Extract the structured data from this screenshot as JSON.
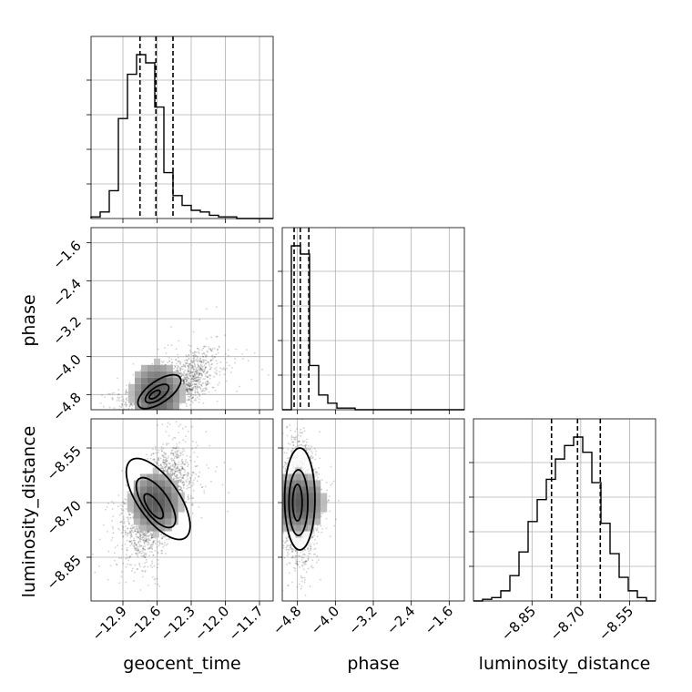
{
  "chart_data": {
    "type": "corner",
    "parameters": [
      "geocent_time",
      "phase",
      "luminosity_distance"
    ],
    "grid": true,
    "panels": [
      {
        "type": "histogram",
        "parameter": "geocent_time",
        "xlim": [
          -13.18,
          -11.58
        ],
        "xticks": [
          "−12.9",
          "−12.6",
          "−12.3",
          "−12.0",
          "−11.7"
        ],
        "xtick_values": [
          -12.9,
          -12.6,
          -12.3,
          -12.0,
          -11.7
        ],
        "bin_edges": [
          -13.18,
          -13.1,
          -13.02,
          -12.94,
          -12.86,
          -12.78,
          -12.7,
          -12.62,
          -12.54,
          -12.46,
          -12.38,
          -12.3,
          -12.22,
          -12.14,
          -12.06,
          -11.98,
          -11.9,
          -11.82,
          -11.74,
          -11.66,
          -11.58
        ],
        "counts": [
          1,
          4,
          17,
          61,
          88,
          100,
          95,
          68,
          28,
          14,
          8,
          5,
          4,
          2,
          1,
          1,
          0,
          0,
          0,
          0
        ],
        "quantiles": [
          -12.75,
          -12.61,
          -12.46
        ]
      },
      {
        "type": "histogram",
        "parameter": "phase",
        "xlim": [
          -5.12,
          -1.28
        ],
        "xticks": [
          "−4.8",
          "−4.0",
          "−3.2",
          "−2.4",
          "−1.6"
        ],
        "xtick_values": [
          -4.8,
          -4.0,
          -3.2,
          -2.4,
          -1.6
        ],
        "bin_edges": [
          -5.12,
          -4.928,
          -4.736,
          -4.544,
          -4.352,
          -4.16,
          -3.968,
          -3.776,
          -3.584,
          -3.392,
          -3.2,
          -3.008,
          -2.816,
          -2.624,
          -2.432,
          -2.24,
          -2.048,
          -1.856,
          -1.664,
          -1.472,
          -1.28
        ],
        "counts": [
          0,
          100,
          95,
          27,
          9,
          4,
          1,
          1,
          0,
          0,
          0,
          0,
          0,
          0,
          0,
          0,
          0,
          0,
          0,
          0
        ],
        "quantiles": [
          -4.87,
          -4.74,
          -4.56
        ]
      },
      {
        "type": "histogram",
        "parameter": "luminosity_distance",
        "xlim": [
          -9.03,
          -8.47
        ],
        "xticks": [
          "−8.85",
          "−8.70",
          "−8.55"
        ],
        "xtick_values": [
          -8.85,
          -8.7,
          -8.55
        ],
        "bin_edges": [
          -9.03,
          -9.002,
          -8.974,
          -8.946,
          -8.918,
          -8.89,
          -8.862,
          -8.834,
          -8.806,
          -8.778,
          -8.75,
          -8.722,
          -8.694,
          -8.666,
          -8.638,
          -8.61,
          -8.582,
          -8.554,
          -8.526,
          -8.498,
          -8.47
        ],
        "counts": [
          0,
          1,
          2,
          6,
          15,
          29,
          47,
          60,
          72,
          84,
          92,
          97,
          88,
          70,
          46,
          28,
          14,
          6,
          2,
          0
        ],
        "quantiles": [
          -8.79,
          -8.71,
          -8.64
        ]
      },
      {
        "type": "scatter_density",
        "x": "geocent_time",
        "y": "phase",
        "ylim": [
          -5.12,
          -1.28
        ],
        "yticks": [
          "−4.8",
          "−4.0",
          "−3.2",
          "−2.4",
          "−1.6"
        ],
        "ytick_values": [
          -4.8,
          -4.0,
          -3.2,
          -2.4,
          -1.6
        ],
        "ylabel": "phase",
        "mean": [
          -12.6,
          -4.8
        ],
        "sd": [
          0.13,
          0.14
        ],
        "tail": {
          "mean": [
            -12.35,
            -4.45
          ],
          "sd": [
            0.15,
            0.32
          ]
        },
        "contours": [
          {
            "center": [
              -12.62,
              -4.8
            ],
            "rx": 0.055,
            "ry": 0.06
          },
          {
            "center": [
              -12.6,
              -4.78
            ],
            "rx": 0.12,
            "ry": 0.13
          },
          {
            "center": [
              -12.58,
              -4.74
            ],
            "rx": 0.22,
            "ry": 0.23
          }
        ]
      },
      {
        "type": "scatter_density",
        "x": "geocent_time",
        "y": "luminosity_distance",
        "ylim": [
          -8.97,
          -8.47
        ],
        "yticks": [
          "−8.85",
          "−8.70",
          "−8.55"
        ],
        "ytick_values": [
          -8.85,
          -8.7,
          -8.55
        ],
        "ylabel": "luminosity_distance",
        "xlabel": "geocent_time",
        "mean": [
          -12.6,
          -8.7
        ],
        "sd": [
          0.13,
          0.07
        ],
        "contours": [
          {
            "center": [
              -12.63,
              -8.71
            ],
            "rx": 0.05,
            "ry": 0.04
          },
          {
            "center": [
              -12.61,
              -8.7
            ],
            "rx": 0.11,
            "ry": 0.08
          },
          {
            "center": [
              -12.59,
              -8.69
            ],
            "rx": 0.18,
            "ry": 0.13
          }
        ]
      },
      {
        "type": "scatter_density",
        "x": "phase",
        "y": "luminosity_distance",
        "xlabel": "phase",
        "mean": [
          -4.75,
          -8.7
        ],
        "sd": [
          0.17,
          0.07
        ],
        "contours": [
          {
            "center": [
              -4.8,
              -8.7
            ],
            "rx": 0.1,
            "ry": 0.05
          },
          {
            "center": [
              -4.78,
              -8.7
            ],
            "rx": 0.2,
            "ry": 0.09
          },
          {
            "center": [
              -4.75,
              -8.69
            ],
            "rx": 0.32,
            "ry": 0.14
          }
        ]
      }
    ],
    "xlabels": [
      "geocent_time",
      "phase",
      "luminosity_distance"
    ]
  }
}
